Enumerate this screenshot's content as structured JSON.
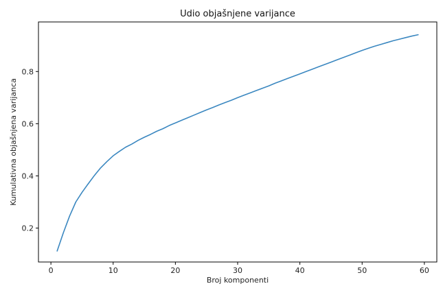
{
  "chart_data": {
    "type": "line",
    "title": "Udio objašnjene varijance",
    "xlabel": "Broj komponenti",
    "ylabel": "Kumulativna objašnjena varijanca",
    "xlim": [
      -2.0,
      62.0
    ],
    "ylim": [
      0.07,
      0.99
    ],
    "xticks": [
      0,
      10,
      20,
      30,
      40,
      50,
      60
    ],
    "yticks": [
      0.2,
      0.4,
      0.6,
      0.8
    ],
    "ytick_labels": [
      "0.2",
      "0.4",
      "0.6",
      "0.8"
    ],
    "grid": false,
    "line_color": "#3a87c0",
    "series": [
      {
        "x": [
          1,
          2,
          3,
          4,
          5,
          6,
          7,
          8,
          9,
          10,
          11,
          12,
          13,
          14,
          15,
          16,
          17,
          18,
          19,
          20,
          21,
          22,
          23,
          24,
          25,
          26,
          27,
          28,
          29,
          30,
          31,
          32,
          33,
          34,
          35,
          36,
          37,
          38,
          39,
          40,
          41,
          42,
          43,
          44,
          45,
          46,
          47,
          48,
          49,
          50,
          51,
          52,
          53,
          54,
          55,
          56,
          57,
          58,
          59
        ],
        "values": [
          0.112,
          0.182,
          0.246,
          0.3,
          0.337,
          0.37,
          0.402,
          0.431,
          0.455,
          0.477,
          0.494,
          0.51,
          0.522,
          0.536,
          0.548,
          0.559,
          0.571,
          0.581,
          0.593,
          0.603,
          0.613,
          0.623,
          0.633,
          0.643,
          0.653,
          0.662,
          0.672,
          0.681,
          0.69,
          0.7,
          0.709,
          0.718,
          0.727,
          0.736,
          0.745,
          0.755,
          0.764,
          0.773,
          0.782,
          0.791,
          0.8,
          0.809,
          0.818,
          0.827,
          0.836,
          0.845,
          0.854,
          0.863,
          0.872,
          0.881,
          0.889,
          0.897,
          0.904,
          0.911,
          0.918,
          0.924,
          0.93,
          0.936,
          0.941
        ]
      }
    ]
  }
}
